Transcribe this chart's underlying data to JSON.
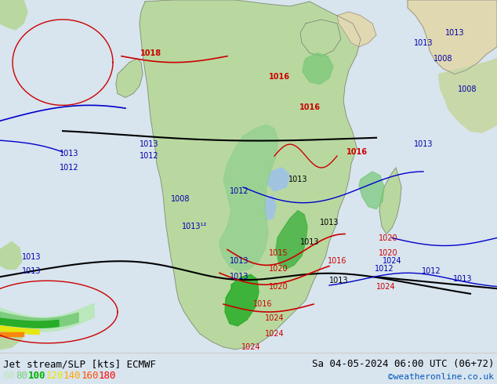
{
  "title_left": "Jet stream/SLP [kts] ECMWF",
  "title_right": "Sa 04-05-2024 06:00 UTC (06+72)",
  "credit": "©weatheronline.co.uk",
  "legend_values": [
    "60",
    "80",
    "100",
    "120",
    "140",
    "160",
    "180"
  ],
  "legend_colors": [
    "#b8e8b8",
    "#78d078",
    "#00b400",
    "#e8e800",
    "#ffa500",
    "#ff5000",
    "#ff0000"
  ],
  "ocean_color": "#d8e4ee",
  "land_africa_color": "#b8d8a0",
  "land_other_color": "#c8d8a8",
  "land_desert_color": "#e0d8b0",
  "contour_black": "#000000",
  "contour_blue": "#0000cc",
  "contour_red": "#cc0000",
  "jet_green_dark": "#40b840",
  "jet_green_med": "#78cc78",
  "jet_green_light": "#a8dca8",
  "jet_yellow": "#e8e820",
  "jet_orange": "#ffa020",
  "jet_red": "#ff4000",
  "bg_color": "#d8e4ee",
  "figsize": [
    6.34,
    4.9
  ],
  "dpi": 100
}
